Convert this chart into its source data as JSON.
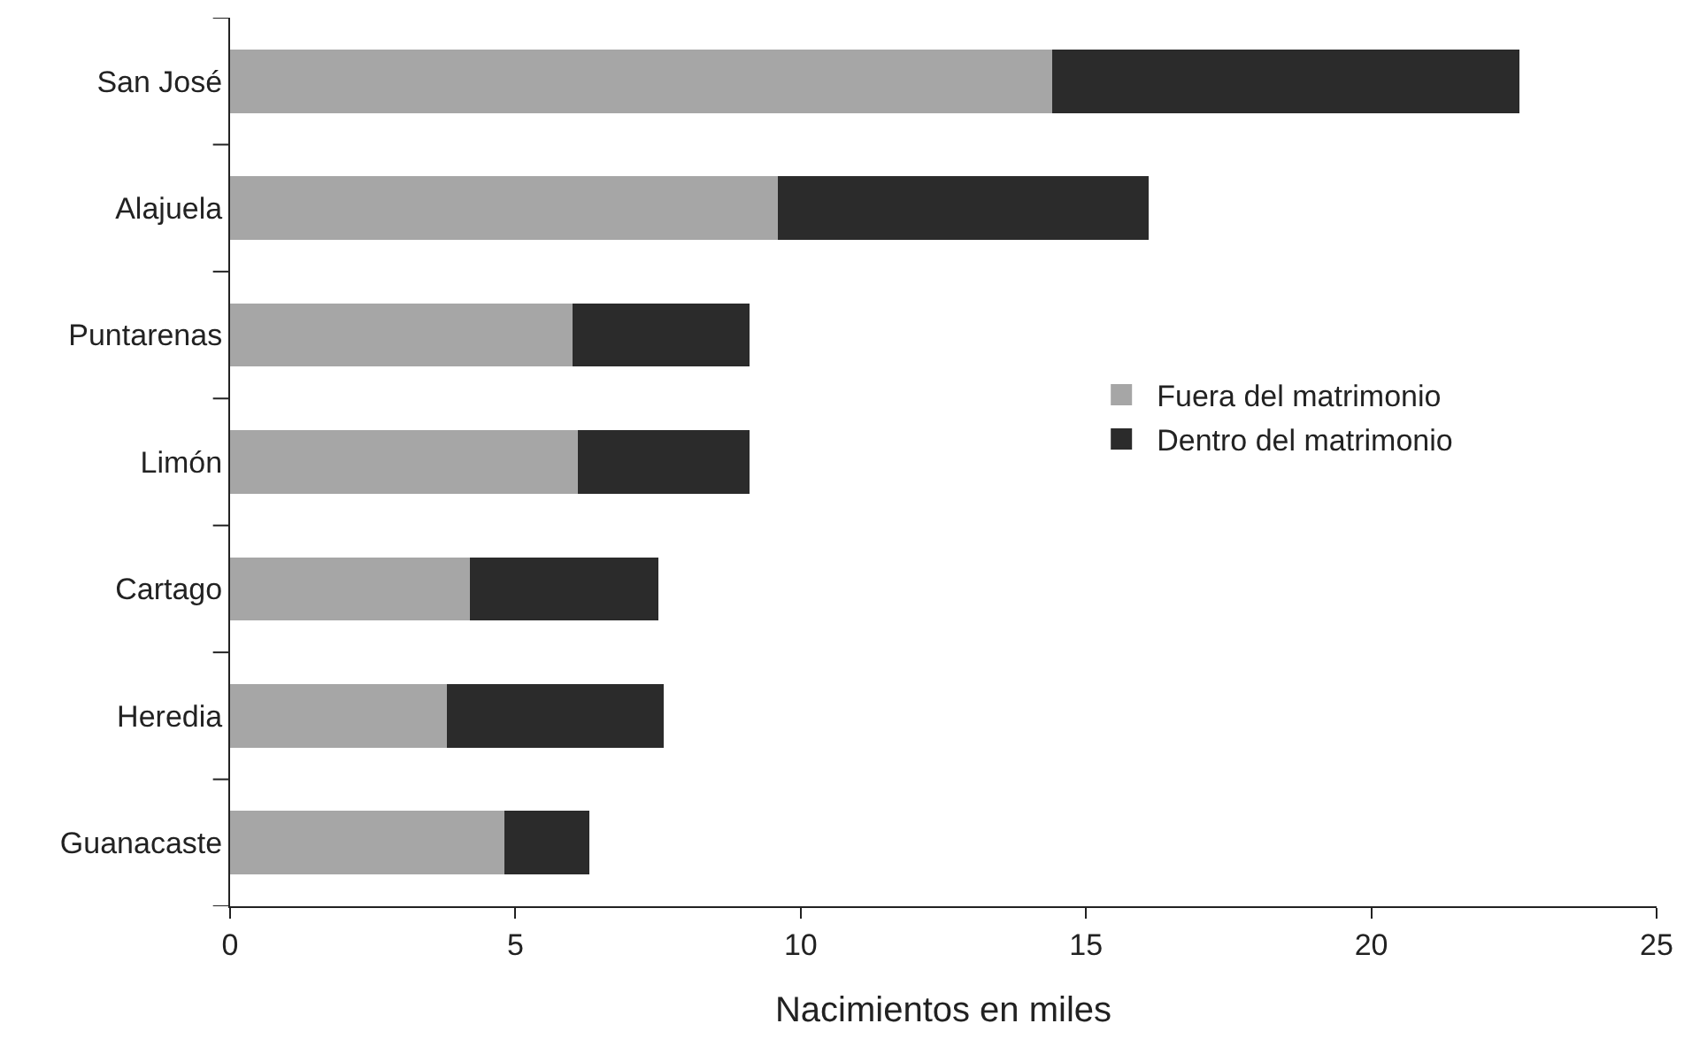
{
  "chart_data": {
    "type": "bar",
    "orientation": "horizontal",
    "stacked": true,
    "xlabel": "Nacimientos en miles",
    "categories": [
      "San José",
      "Alajuela",
      "Puntarenas",
      "Limón",
      "Cartago",
      "Heredia",
      "Guanacaste"
    ],
    "series": [
      {
        "name": "Fuera del matrimonio",
        "color": "#a6a6a6",
        "values": [
          14.4,
          9.6,
          6.0,
          6.1,
          4.2,
          3.8,
          4.8
        ]
      },
      {
        "name": "Dentro del matrimonio",
        "color": "#2b2b2b",
        "values": [
          8.2,
          6.5,
          3.1,
          3.0,
          3.3,
          3.8,
          1.5
        ]
      }
    ],
    "xlim": [
      0,
      25
    ],
    "xticks": [
      0,
      5,
      10,
      15,
      20,
      25
    ],
    "legend": "right"
  }
}
